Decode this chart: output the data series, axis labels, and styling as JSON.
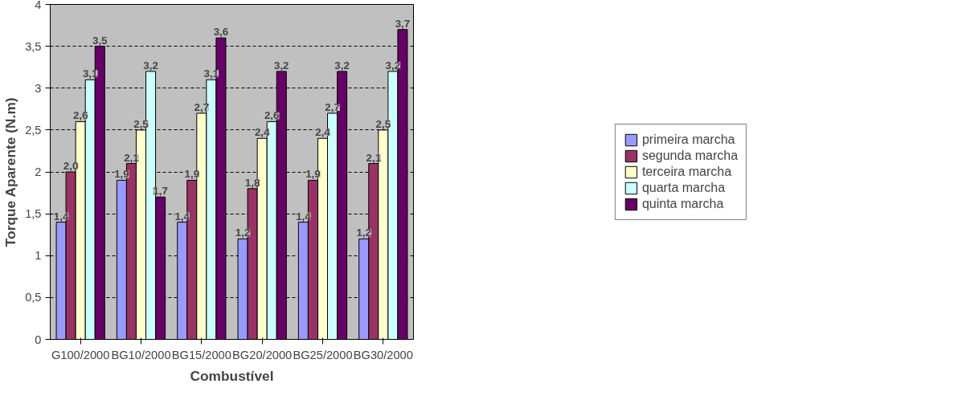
{
  "chart_data": {
    "type": "bar",
    "xlabel": "Combustível",
    "ylabel": "Torque Aparente (N.m)",
    "categories": [
      "G100/2000",
      "BG10/2000",
      "BG15/2000",
      "BG20/2000",
      "BG25/2000",
      "BG30/2000"
    ],
    "series": [
      {
        "name": "primeira marcha",
        "color": "#9999ff",
        "values": [
          1.4,
          1.9,
          1.4,
          1.2,
          1.4,
          1.2
        ],
        "value_labels": [
          "1,4",
          "1,9",
          "1,4",
          "1,2",
          "1,4",
          "1,2"
        ]
      },
      {
        "name": "segunda marcha",
        "color": "#993366",
        "values": [
          2.0,
          2.1,
          1.9,
          1.8,
          1.9,
          2.1
        ],
        "value_labels": [
          "2,0",
          "2,1",
          "1,9",
          "1,8",
          "1,9",
          "2,1"
        ]
      },
      {
        "name": "terceira marcha",
        "color": "#ffffcc",
        "values": [
          2.6,
          2.5,
          2.7,
          2.4,
          2.4,
          2.5
        ],
        "value_labels": [
          "2,6",
          "2,5",
          "2,7",
          "2,4",
          "2,4",
          "2,5"
        ]
      },
      {
        "name": "quarta marcha",
        "color": "#ccffff",
        "values": [
          3.1,
          3.2,
          3.1,
          2.6,
          2.7,
          3.2
        ],
        "value_labels": [
          "3,1",
          "3,2",
          "3,1",
          "2,6",
          "2,7",
          "3,2"
        ]
      },
      {
        "name": "quinta marcha",
        "color": "#660066",
        "values": [
          3.5,
          1.7,
          3.6,
          3.2,
          3.2,
          3.7
        ],
        "value_labels": [
          "3,5",
          "1,7",
          "3,6",
          "3,2",
          "3,2",
          "3,7"
        ]
      }
    ],
    "ylim": [
      0,
      4
    ],
    "yticks": [
      0,
      {
        "value": 0.5,
        "label": "0,5"
      },
      1,
      {
        "value": 1.5,
        "label": "1,5"
      },
      2,
      {
        "value": 2.5,
        "label": "2,5"
      },
      3,
      {
        "value": 3.5,
        "label": "3,5"
      },
      4
    ],
    "grid": "y",
    "legend": "right"
  }
}
